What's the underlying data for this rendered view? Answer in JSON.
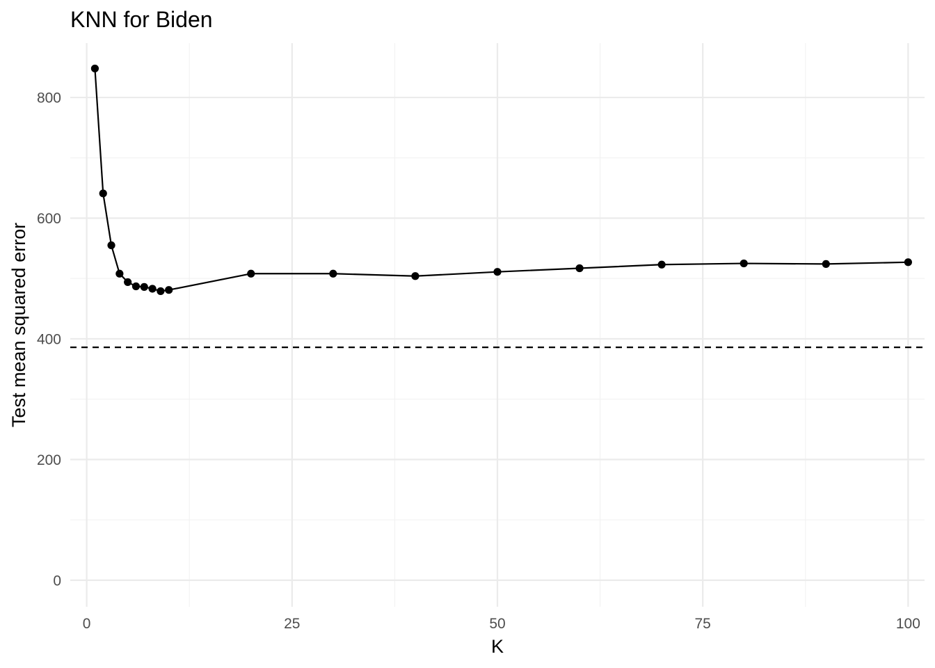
{
  "chart_data": {
    "type": "line",
    "title": "KNN for Biden",
    "xlabel": "K",
    "ylabel": "Test mean squared error",
    "xlim": [
      -2,
      102
    ],
    "ylim": [
      -44,
      890
    ],
    "x_ticks": [
      0,
      25,
      50,
      75,
      100
    ],
    "x_tick_labels": [
      "0",
      "25",
      "50",
      "75",
      "100"
    ],
    "y_ticks": [
      0,
      200,
      400,
      600,
      800
    ],
    "y_tick_labels": [
      "0",
      "200",
      "400",
      "600",
      "800"
    ],
    "grid": true,
    "legend": "none",
    "series": [
      {
        "x": [
          1,
          2,
          3,
          4,
          5,
          6,
          7,
          8,
          9,
          10,
          20,
          30,
          40,
          50,
          60,
          70,
          80,
          90,
          100
        ],
        "y": [
          848,
          641,
          555,
          508,
          494,
          487,
          486,
          483,
          479,
          481,
          508,
          508,
          504,
          511,
          517,
          523,
          525,
          524,
          527
        ],
        "color": "#000000",
        "markers": true
      }
    ],
    "reference_lines": [
      {
        "orientation": "horizontal",
        "y": 386,
        "style": "dashed",
        "color": "#000000"
      }
    ]
  },
  "colors": {
    "background": "#ffffff",
    "major_grid": "#ebebeb",
    "minor_grid": "#f2f2f2",
    "ink": "#000000",
    "tick_text": "#4d4d4d"
  }
}
